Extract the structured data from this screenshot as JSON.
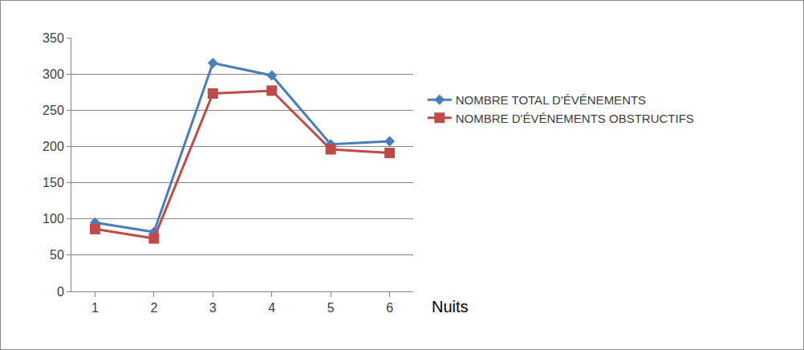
{
  "chart_data": {
    "type": "line",
    "x_label": "Nuits",
    "categories": [
      "1",
      "2",
      "3",
      "4",
      "5",
      "6"
    ],
    "series": [
      {
        "name": "NOMBRE TOTAL D'ÉVÉNEMENTS",
        "color": "#4a7ebb",
        "marker": "diamond",
        "values": [
          95,
          82,
          315,
          298,
          203,
          207
        ]
      },
      {
        "name": "NOMBRE D'ÉVÉNEMENTS OBSTRUCTIFS",
        "color": "#be4b48",
        "marker": "square",
        "values": [
          86,
          73,
          273,
          277,
          196,
          191
        ]
      }
    ],
    "ylim": [
      0,
      350
    ],
    "yticks": [
      0,
      50,
      100,
      150,
      200,
      250,
      300,
      350
    ],
    "grid": true,
    "legend": "right"
  }
}
